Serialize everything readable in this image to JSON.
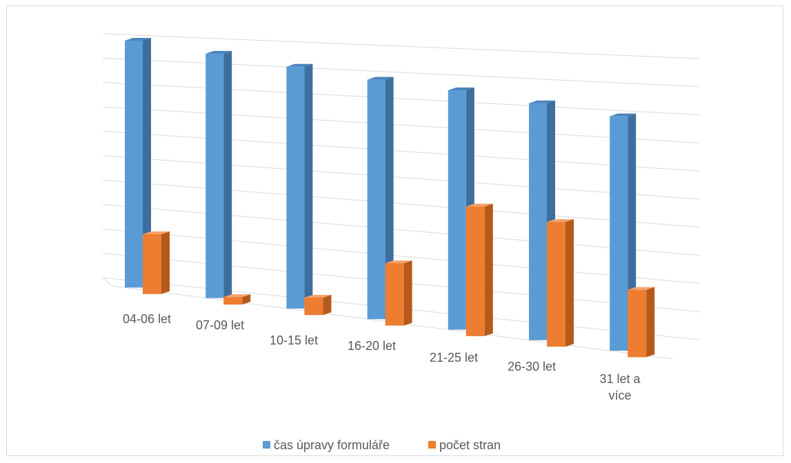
{
  "chart_data": {
    "type": "bar",
    "subtype": "3d-clustered-column",
    "title": "",
    "xlabel": "",
    "ylabel": "",
    "categories": [
      "04-06 let",
      "07-09 let",
      "10-15 let",
      "16-20 let",
      "21-25 let",
      "26-30 let",
      "31 let a více"
    ],
    "category_lines": [
      [
        "04-06 let"
      ],
      [
        "07-09 let"
      ],
      [
        "10-15 let"
      ],
      [
        "16-20 let"
      ],
      [
        "21-25 let"
      ],
      [
        "26-30 let"
      ],
      [
        "31 let a",
        "více"
      ]
    ],
    "ylim": [
      0,
      10
    ],
    "value_axis_labels": "hidden",
    "grid": true,
    "legend_position": "bottom",
    "series": [
      {
        "name": "čas úpravy formuláře",
        "values": [
          9.9,
          9.8,
          9.7,
          9.6,
          9.6,
          9.5,
          9.4
        ],
        "color": "#5B9BD5"
      },
      {
        "name": "počet stran",
        "values": [
          2.4,
          0.3,
          0.7,
          2.5,
          5.2,
          5.0,
          2.7
        ],
        "color": "#ED7D31"
      }
    ]
  }
}
